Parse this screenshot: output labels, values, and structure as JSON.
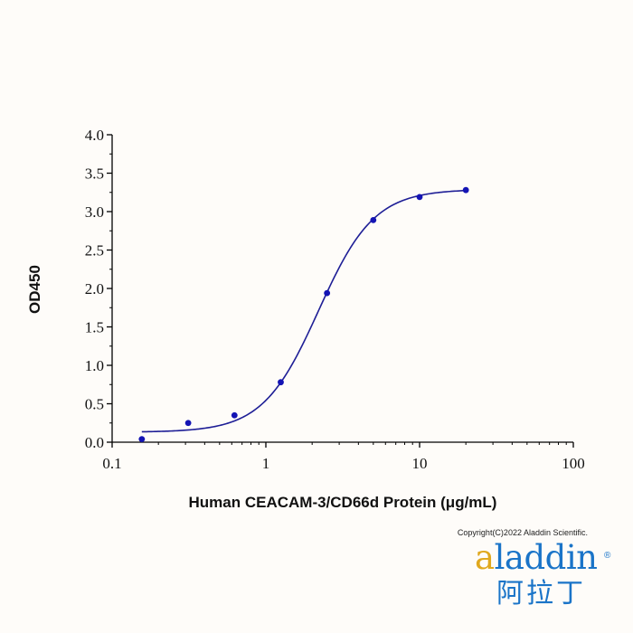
{
  "chart_data": {
    "type": "scatter",
    "title": "",
    "xlabel": "Human CEACAM-3/CD66d Protein (μg/mL)",
    "ylabel": "OD450",
    "x_scale": "log",
    "xlim": [
      0.1,
      100
    ],
    "ylim": [
      0,
      4.0
    ],
    "x_ticks": [
      "0.1",
      "1",
      "10",
      "100"
    ],
    "y_ticks": [
      "0.0",
      "0.5",
      "1.0",
      "1.5",
      "2.0",
      "2.5",
      "3.0",
      "3.5",
      "4.0"
    ],
    "grid": false,
    "legend": "none",
    "series": [
      {
        "x": [
          0.156,
          0.3125,
          0.625,
          1.25,
          2.5,
          5,
          10,
          20
        ],
        "y": [
          0.04,
          0.25,
          0.35,
          0.78,
          1.94,
          2.89,
          3.19,
          3.28
        ],
        "fit": "4PL",
        "fit_params": {
          "bottom": 0.13,
          "top": 3.29,
          "ec50": 2.2,
          "hill": 2.4
        }
      }
    ],
    "marker_color": "#1414b4",
    "line_color": "#1e1e96"
  },
  "footer": {
    "copyright": "Copyright(C)2022 Aladdin Scientific."
  },
  "logo": {
    "latin_gold": "a",
    "latin_blue": "laddin",
    "registered": "®",
    "chinese": "阿拉丁"
  }
}
